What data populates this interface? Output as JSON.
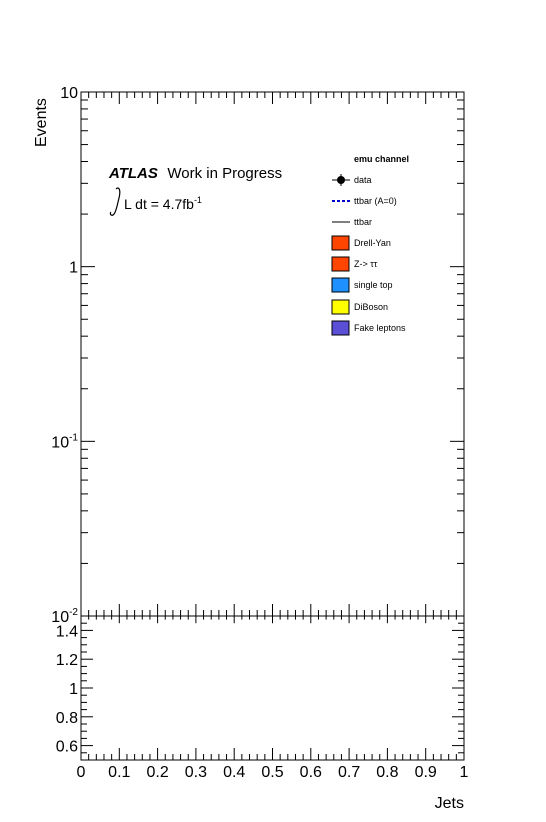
{
  "chart_data": [
    {
      "type": "line",
      "panel": "main",
      "ylabel": "Events",
      "yscale": "log",
      "ylim": [
        0.01,
        10
      ],
      "xlim": [
        0,
        1
      ],
      "y_ticks": [
        {
          "value": 10,
          "base": "10",
          "exp": ""
        },
        {
          "value": 1,
          "base": "1",
          "exp": ""
        },
        {
          "value": 0.1,
          "base": "10",
          "exp": "-1"
        },
        {
          "value": 0.01,
          "base": "10",
          "exp": "-2"
        }
      ],
      "experiment": "ATLAS",
      "status": "Work in Progress",
      "lumi_prefix": "L dt = 4.7fb",
      "lumi_exp": "-1",
      "legend_header": "emu channel",
      "legend_placement": "top-right",
      "series": [
        {
          "name": "data",
          "style": "marker",
          "color": "#000000",
          "values": []
        },
        {
          "name": "ttbar (A=0)",
          "style": "dashed",
          "color": "#0000cc",
          "values": []
        },
        {
          "name": "ttbar",
          "style": "line",
          "color": "#000000",
          "values": []
        },
        {
          "name": "Drell-Yan",
          "style": "fill",
          "color": "#ff4500",
          "values": []
        },
        {
          "name": "Z-> ττ",
          "style": "fill",
          "color": "#ff4500",
          "values": []
        },
        {
          "name": "single top",
          "style": "fill",
          "color": "#1e90ff",
          "values": []
        },
        {
          "name": "DiBoson",
          "style": "fill",
          "color": "#ffff00",
          "values": []
        },
        {
          "name": "Fake leptons",
          "style": "fill",
          "color": "#5a4fd6",
          "values": []
        }
      ]
    },
    {
      "type": "line",
      "panel": "ratio",
      "xlabel": "Jets",
      "xlim": [
        0,
        1
      ],
      "ylim": [
        0.5,
        1.5
      ],
      "x_ticks": [
        "0",
        "0.1",
        "0.2",
        "0.3",
        "0.4",
        "0.5",
        "0.6",
        "0.7",
        "0.8",
        "0.9",
        "1"
      ],
      "y_ticks": [
        "0.6",
        "0.8",
        "1",
        "1.2",
        "1.4"
      ],
      "series": []
    }
  ]
}
